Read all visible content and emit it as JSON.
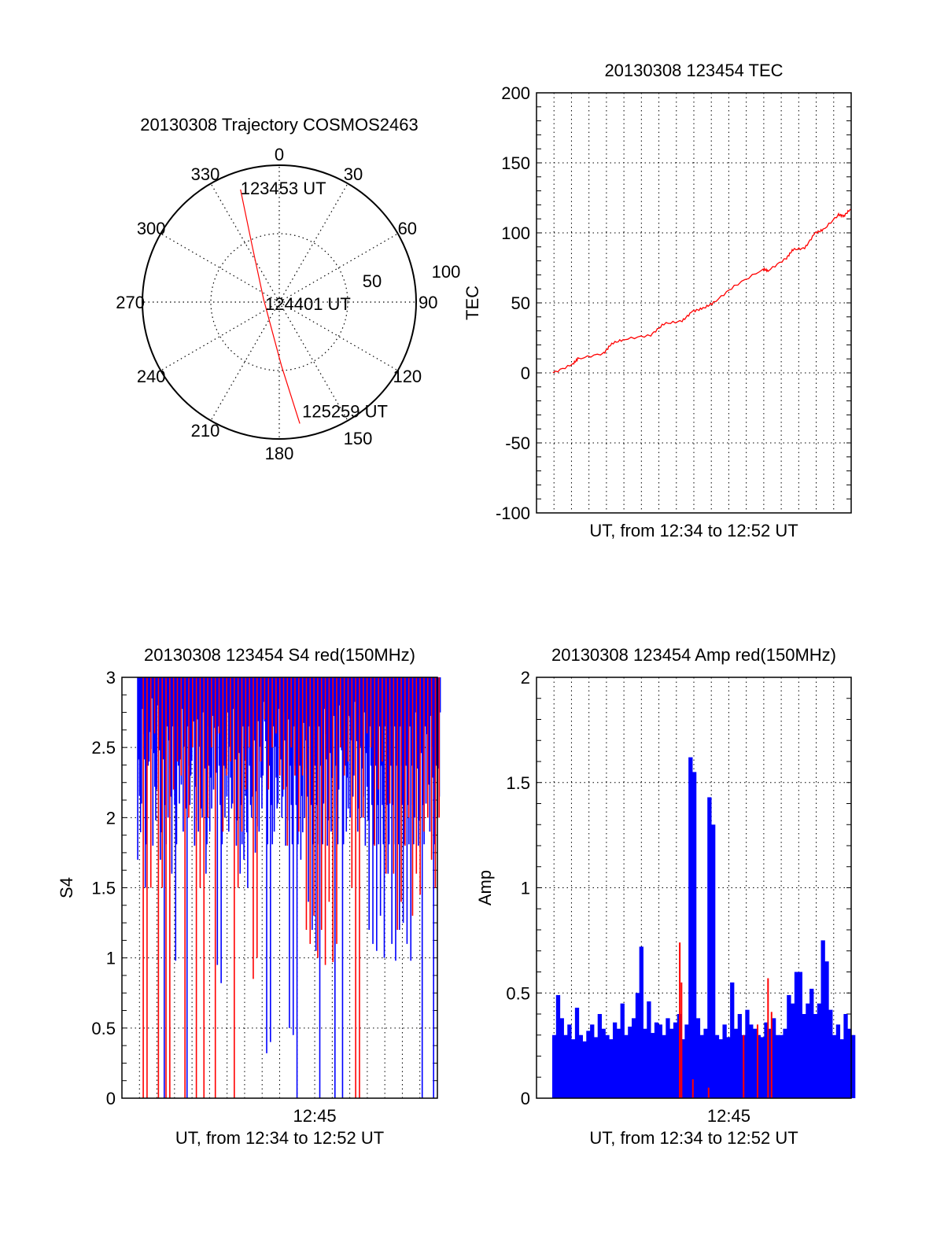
{
  "colors": {
    "red": "#ff0000",
    "blue": "#0000ff",
    "axis": "#000000"
  },
  "chart_data": [
    {
      "type": "polar",
      "title": "20130308 Trajectory COSMOS2463",
      "angle_labels": [
        "0",
        "30",
        "60",
        "90",
        "120",
        "150",
        "180",
        "210",
        "240",
        "270",
        "300",
        "330"
      ],
      "radial_labels": [
        "50",
        "100"
      ],
      "rlim": [
        0,
        100
      ],
      "grid": true,
      "series": [
        {
          "name": "trajectory",
          "color": "red",
          "azimuth_deg": [
            341,
            334.7,
            281,
            178,
            170.4
          ],
          "radius": [
            87,
            47,
            11.7,
            46.6,
            90
          ]
        }
      ],
      "annotations": [
        {
          "text": "123453 UT",
          "azimuth_deg": 341,
          "radius": 87
        },
        {
          "text": "124401 UT",
          "azimuth_deg": 281,
          "radius": 11.7
        },
        {
          "text": "125259 UT",
          "azimuth_deg": 170.4,
          "radius": 90
        }
      ]
    },
    {
      "type": "line",
      "title": "20130308 123454 TEC",
      "xlabel": "UT, from 12:34 to 12:52 UT",
      "ylabel": "TEC",
      "xlim": [
        0,
        18
      ],
      "x_unit": "minutes after 12:34",
      "ylim": [
        -100,
        200
      ],
      "yticks": [
        "-100",
        "-50",
        "0",
        "50",
        "100",
        "150",
        "200"
      ],
      "grid": true,
      "series": [
        {
          "name": "TEC",
          "color": "red",
          "x": [
            0.94,
            2.06,
            2.36,
            3.85,
            4.3,
            5.04,
            6.54,
            7.28,
            8.33,
            8.93,
            9.52,
            10.12,
            11.31,
            12.96,
            13.25,
            14.3,
            14.67,
            15.34,
            15.94,
            16.39,
            17.28,
            17.58,
            17.96
          ],
          "y": [
            0,
            6,
            10,
            14,
            21,
            24,
            27,
            35,
            37,
            44,
            46,
            50,
            62,
            74,
            73,
            82,
            88,
            89,
            100,
            102,
            113,
            112,
            117
          ]
        }
      ]
    },
    {
      "type": "line",
      "title": "20130308 123454 S4 red(150MHz)",
      "xlabel": "UT, from 12:34 to 12:52 UT",
      "ylabel": "S4",
      "xlim": [
        0,
        18
      ],
      "x_unit": "minutes after 12:34",
      "xticks": [
        "12:45"
      ],
      "xtick_values": [
        11
      ],
      "ylim": [
        0,
        3
      ],
      "yticks": [
        "0",
        "0.5",
        "1",
        "1.5",
        "2",
        "2.5",
        "3"
      ],
      "grid": true,
      "x_start": 0.9,
      "x_end": 18,
      "series": [
        {
          "name": "S4 blue",
          "color": "blue",
          "values": [
            1.7,
            2.1,
            1.5,
            2.4,
            1.8,
            2.2,
            1.7,
            0,
            2.0,
            1.6,
            0.98,
            2.1,
            1.9,
            0,
            2.3,
            1.8,
            1.9,
            2.0,
            1.6,
            1.9,
            2.2,
            0.95,
            0.82,
            2.0,
            1.9,
            2.1,
            1.8,
            1.6,
            1.7,
            1.5,
            2.0,
            1.75,
            1.9,
            2.3,
            0.32,
            0.4,
            1.9,
            2.1,
            2.0,
            1.8,
            0.5,
            0.45,
            0,
            1.7,
            2.0,
            1.4,
            1.2,
            1.05,
            0,
            2.1,
            1.8,
            1.9,
            0,
            2.2,
            0,
            1.9,
            2.0,
            2.3,
            1.9,
            2.0,
            1.8,
            1.2,
            1.1,
            1.05,
            1.3,
            1.0,
            1.6,
            1.1,
            0.98,
            1.2,
            1.25,
            1.1,
            0.98,
            2.0,
            1.8,
            0,
            2.1,
            1.9,
            0,
            2.0
          ]
        },
        {
          "name": "S4 red",
          "color": "red",
          "values": [
            3,
            0,
            0,
            1.5,
            2.6,
            0,
            1.5,
            0,
            0,
            2.2,
            2.4,
            2.3,
            0,
            2.0,
            2.5,
            0,
            1.5,
            0,
            2.0,
            2.5,
            0,
            2.6,
            1.9,
            2.3,
            2.4,
            0,
            1.5,
            1.9,
            2.2,
            2.5,
            0.85,
            1.0,
            2.4,
            2.7,
            2.2,
            2.5,
            2.6,
            2.3,
            2.2,
            1.8,
            2.5,
            2.3,
            1.9,
            2.3,
            1.2,
            1.1,
            1.3,
            1.0,
            1.2,
            0.95,
            1.4,
            0.97,
            1.1,
            2.5,
            2.3,
            2.4,
            1.5,
            0,
            0,
            2.0,
            2.6,
            2.5,
            1.8,
            2.2,
            2.4,
            1.6,
            2.1,
            1.6,
            1.2,
            1.4,
            1.8,
            2.0,
            1.3,
            1.6,
            1.45,
            1.9,
            2.0,
            1.7,
            1.5,
            2.0
          ]
        }
      ]
    },
    {
      "type": "bar",
      "title": "20130308 123454 Amp red(150MHz)",
      "xlabel": "UT, from 12:34 to 12:52 UT",
      "ylabel": "Amp",
      "xlim": [
        0,
        18
      ],
      "x_unit": "minutes after 12:34",
      "xticks": [
        "12:45"
      ],
      "xtick_values": [
        11
      ],
      "ylim": [
        0,
        2
      ],
      "yticks": [
        "0",
        "0.5",
        "1",
        "1.5",
        "2"
      ],
      "grid": true,
      "x_start": 0.9,
      "x_end": 18,
      "series": [
        {
          "name": "Amp blue",
          "color": "blue",
          "values": [
            0.3,
            0.49,
            0.38,
            0.3,
            0.35,
            0.28,
            0.43,
            0.3,
            0.27,
            0.32,
            0.35,
            0.29,
            0.4,
            0.33,
            0.3,
            0.28,
            0.36,
            0.33,
            0.45,
            0.3,
            0.34,
            0.38,
            0.5,
            0.72,
            0.33,
            0.46,
            0.31,
            0.36,
            0.35,
            0.3,
            0.38,
            0.33,
            0.36,
            0.4,
            0.28,
            0.35,
            1.62,
            1.55,
            0.38,
            0.3,
            0.33,
            1.43,
            1.3,
            0.3,
            0.28,
            0.35,
            0.29,
            0.55,
            0.33,
            0.4,
            0.3,
            0.42,
            0.35,
            0.33,
            0.3,
            0.29,
            0.36,
            0.33,
            0.38,
            0.3,
            0.3,
            0.33,
            0.49,
            0.45,
            0.6,
            0.6,
            0.4,
            0.45,
            0.52,
            0.4,
            0.45,
            0.75,
            0.65,
            0.42,
            0.3,
            0.35,
            0.28,
            0.4,
            0.33,
            0.3
          ]
        },
        {
          "name": "Amp red",
          "color": "red",
          "x": [
            8.15,
            8.25,
            8.9,
            9.8,
            11.8,
            12.6,
            13.2,
            13.4
          ],
          "y": [
            0.74,
            0.55,
            0.09,
            0.05,
            0.3,
            0.35,
            0.57,
            0.41
          ]
        }
      ]
    }
  ]
}
